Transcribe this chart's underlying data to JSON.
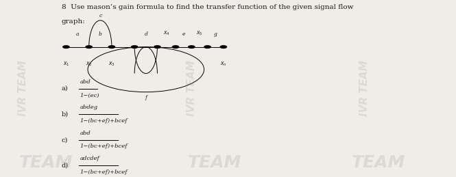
{
  "title_line1": "8  Use mason’s gain formula to find the transfer function of the given signal flow",
  "title_line2": "graph:",
  "title_fontsize": 7.5,
  "bg_color": "#f0ede8",
  "text_color": "#1a1a1a",
  "options": [
    {
      "label": "a)",
      "numerator": "abd",
      "denominator": "1−(ec)"
    },
    {
      "label": "b)",
      "numerator": "abdeg",
      "denominator": "1−(bc+ef)+bcef"
    },
    {
      "label": "c)",
      "numerator": "abd",
      "denominator": "1−(bc+ef)+bcef"
    },
    {
      "label": "d)",
      "numerator": "adcdef",
      "denominator": "1−(bc+ef)+bcef"
    }
  ],
  "fig_width": 6.65,
  "fig_height": 2.59,
  "dpi": 100
}
